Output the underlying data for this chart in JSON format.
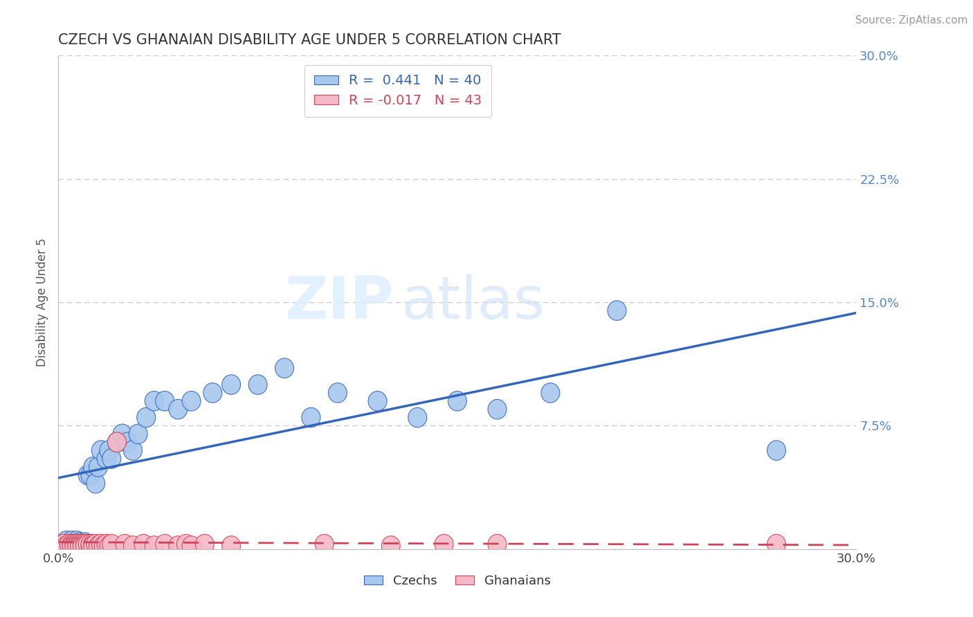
{
  "title": "CZECH VS GHANAIAN DISABILITY AGE UNDER 5 CORRELATION CHART",
  "source_text": "Source: ZipAtlas.com",
  "ylabel": "Disability Age Under 5",
  "xlim": [
    0.0,
    0.3
  ],
  "ylim": [
    0.0,
    0.3
  ],
  "ytick_vals": [
    0.0,
    0.075,
    0.15,
    0.225,
    0.3
  ],
  "ytick_labels": [
    "",
    "7.5%",
    "15.0%",
    "22.5%",
    "30.0%"
  ],
  "grid_color": "#c8c8c8",
  "background_color": "#ffffff",
  "czech_color": "#a8c8ee",
  "ghanaian_color": "#f4b8c8",
  "czech_line_color": "#3366bb",
  "ghanaian_line_color": "#cc4455",
  "ytick_color": "#5588cc",
  "czech_R": 0.441,
  "czech_N": 40,
  "ghanaian_R": -0.017,
  "ghanaian_N": 43,
  "watermark_zip": "ZIP",
  "watermark_atlas": "atlas",
  "czech_x": [
    0.003,
    0.004,
    0.005,
    0.006,
    0.007,
    0.008,
    0.009,
    0.01,
    0.011,
    0.012,
    0.013,
    0.014,
    0.015,
    0.016,
    0.018,
    0.019,
    0.02,
    0.022,
    0.024,
    0.026,
    0.028,
    0.03,
    0.033,
    0.036,
    0.04,
    0.045,
    0.05,
    0.058,
    0.065,
    0.075,
    0.085,
    0.095,
    0.105,
    0.12,
    0.135,
    0.15,
    0.165,
    0.185,
    0.21,
    0.27
  ],
  "czech_y": [
    0.005,
    0.003,
    0.005,
    0.003,
    0.005,
    0.004,
    0.003,
    0.004,
    0.045,
    0.045,
    0.05,
    0.04,
    0.05,
    0.06,
    0.055,
    0.06,
    0.055,
    0.065,
    0.07,
    0.065,
    0.06,
    0.07,
    0.08,
    0.09,
    0.09,
    0.085,
    0.09,
    0.095,
    0.1,
    0.1,
    0.11,
    0.08,
    0.095,
    0.09,
    0.08,
    0.09,
    0.085,
    0.095,
    0.145,
    0.06
  ],
  "ghanaian_x": [
    0.002,
    0.003,
    0.004,
    0.005,
    0.005,
    0.006,
    0.006,
    0.007,
    0.007,
    0.008,
    0.008,
    0.009,
    0.009,
    0.01,
    0.01,
    0.011,
    0.012,
    0.012,
    0.013,
    0.013,
    0.014,
    0.015,
    0.016,
    0.017,
    0.018,
    0.019,
    0.02,
    0.022,
    0.025,
    0.028,
    0.032,
    0.036,
    0.04,
    0.045,
    0.048,
    0.05,
    0.055,
    0.065,
    0.1,
    0.125,
    0.145,
    0.165,
    0.27
  ],
  "ghanaian_y": [
    0.003,
    0.002,
    0.003,
    0.003,
    0.002,
    0.003,
    0.002,
    0.003,
    0.002,
    0.003,
    0.002,
    0.003,
    0.002,
    0.003,
    0.002,
    0.003,
    0.002,
    0.003,
    0.003,
    0.002,
    0.003,
    0.002,
    0.003,
    0.002,
    0.003,
    0.002,
    0.003,
    0.065,
    0.003,
    0.002,
    0.003,
    0.002,
    0.003,
    0.002,
    0.003,
    0.002,
    0.003,
    0.002,
    0.003,
    0.002,
    0.003,
    0.003,
    0.003
  ]
}
